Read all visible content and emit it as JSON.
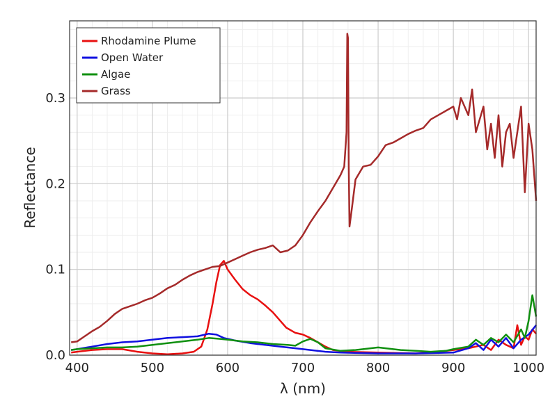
{
  "chart_data": {
    "type": "line",
    "title": "",
    "xlabel": "λ (nm)",
    "ylabel": "Reflectance",
    "xlim": [
      390,
      1010
    ],
    "ylim": [
      0.0,
      0.39
    ],
    "xticks": [
      400,
      500,
      600,
      700,
      800,
      900,
      1000
    ],
    "yticks": [
      0.0,
      0.1,
      0.2,
      0.3
    ],
    "ytick_labels": [
      "0.0",
      "0.1",
      "0.2",
      "0.3"
    ],
    "grid": true,
    "legend_position": "top-left",
    "series": [
      {
        "name": "Rhodamine Plume",
        "color": "#e81010",
        "points": [
          [
            392,
            0.003
          ],
          [
            400,
            0.004
          ],
          [
            420,
            0.006
          ],
          [
            440,
            0.007
          ],
          [
            460,
            0.007
          ],
          [
            480,
            0.004
          ],
          [
            500,
            0.002
          ],
          [
            520,
            0.001
          ],
          [
            540,
            0.002
          ],
          [
            555,
            0.004
          ],
          [
            565,
            0.01
          ],
          [
            573,
            0.03
          ],
          [
            580,
            0.06
          ],
          [
            585,
            0.085
          ],
          [
            590,
            0.105
          ],
          [
            595,
            0.11
          ],
          [
            600,
            0.1
          ],
          [
            610,
            0.088
          ],
          [
            620,
            0.077
          ],
          [
            630,
            0.07
          ],
          [
            640,
            0.065
          ],
          [
            650,
            0.058
          ],
          [
            660,
            0.05
          ],
          [
            670,
            0.04
          ],
          [
            678,
            0.032
          ],
          [
            690,
            0.026
          ],
          [
            700,
            0.024
          ],
          [
            710,
            0.02
          ],
          [
            720,
            0.015
          ],
          [
            730,
            0.01
          ],
          [
            740,
            0.006
          ],
          [
            760,
            0.004
          ],
          [
            800,
            0.003
          ],
          [
            850,
            0.002
          ],
          [
            880,
            0.004
          ],
          [
            900,
            0.006
          ],
          [
            920,
            0.008
          ],
          [
            940,
            0.012
          ],
          [
            950,
            0.006
          ],
          [
            960,
            0.018
          ],
          [
            970,
            0.012
          ],
          [
            980,
            0.008
          ],
          [
            985,
            0.035
          ],
          [
            990,
            0.012
          ],
          [
            995,
            0.022
          ],
          [
            1000,
            0.018
          ],
          [
            1005,
            0.03
          ],
          [
            1010,
            0.025
          ]
        ]
      },
      {
        "name": "Open Water",
        "color": "#1010e0",
        "points": [
          [
            392,
            0.006
          ],
          [
            400,
            0.007
          ],
          [
            420,
            0.01
          ],
          [
            440,
            0.013
          ],
          [
            460,
            0.015
          ],
          [
            480,
            0.016
          ],
          [
            500,
            0.018
          ],
          [
            520,
            0.02
          ],
          [
            540,
            0.021
          ],
          [
            560,
            0.022
          ],
          [
            575,
            0.025
          ],
          [
            585,
            0.024
          ],
          [
            595,
            0.02
          ],
          [
            610,
            0.017
          ],
          [
            630,
            0.014
          ],
          [
            650,
            0.012
          ],
          [
            670,
            0.01
          ],
          [
            690,
            0.008
          ],
          [
            710,
            0.006
          ],
          [
            730,
            0.004
          ],
          [
            750,
            0.003
          ],
          [
            800,
            0.002
          ],
          [
            850,
            0.002
          ],
          [
            900,
            0.003
          ],
          [
            920,
            0.008
          ],
          [
            930,
            0.014
          ],
          [
            940,
            0.006
          ],
          [
            950,
            0.018
          ],
          [
            960,
            0.01
          ],
          [
            970,
            0.02
          ],
          [
            980,
            0.008
          ],
          [
            990,
            0.018
          ],
          [
            1000,
            0.024
          ],
          [
            1010,
            0.035
          ]
        ]
      },
      {
        "name": "Algae",
        "color": "#109010",
        "points": [
          [
            392,
            0.006
          ],
          [
            400,
            0.007
          ],
          [
            420,
            0.008
          ],
          [
            440,
            0.009
          ],
          [
            460,
            0.009
          ],
          [
            480,
            0.01
          ],
          [
            500,
            0.012
          ],
          [
            520,
            0.014
          ],
          [
            540,
            0.016
          ],
          [
            560,
            0.018
          ],
          [
            575,
            0.02
          ],
          [
            590,
            0.019
          ],
          [
            600,
            0.018
          ],
          [
            620,
            0.016
          ],
          [
            640,
            0.015
          ],
          [
            660,
            0.013
          ],
          [
            680,
            0.012
          ],
          [
            690,
            0.011
          ],
          [
            700,
            0.016
          ],
          [
            710,
            0.019
          ],
          [
            720,
            0.015
          ],
          [
            730,
            0.008
          ],
          [
            750,
            0.005
          ],
          [
            770,
            0.006
          ],
          [
            790,
            0.008
          ],
          [
            800,
            0.009
          ],
          [
            810,
            0.008
          ],
          [
            830,
            0.006
          ],
          [
            850,
            0.005
          ],
          [
            870,
            0.004
          ],
          [
            890,
            0.005
          ],
          [
            900,
            0.007
          ],
          [
            920,
            0.01
          ],
          [
            930,
            0.018
          ],
          [
            940,
            0.012
          ],
          [
            950,
            0.02
          ],
          [
            960,
            0.015
          ],
          [
            970,
            0.024
          ],
          [
            980,
            0.015
          ],
          [
            990,
            0.03
          ],
          [
            995,
            0.02
          ],
          [
            1000,
            0.04
          ],
          [
            1005,
            0.07
          ],
          [
            1010,
            0.045
          ]
        ]
      },
      {
        "name": "Grass",
        "color": "#a52a2a",
        "points": [
          [
            392,
            0.015
          ],
          [
            400,
            0.016
          ],
          [
            410,
            0.022
          ],
          [
            420,
            0.028
          ],
          [
            430,
            0.033
          ],
          [
            440,
            0.04
          ],
          [
            450,
            0.048
          ],
          [
            460,
            0.054
          ],
          [
            470,
            0.057
          ],
          [
            480,
            0.06
          ],
          [
            490,
            0.064
          ],
          [
            500,
            0.067
          ],
          [
            510,
            0.072
          ],
          [
            520,
            0.078
          ],
          [
            530,
            0.082
          ],
          [
            540,
            0.088
          ],
          [
            550,
            0.093
          ],
          [
            560,
            0.097
          ],
          [
            570,
            0.1
          ],
          [
            580,
            0.103
          ],
          [
            590,
            0.104
          ],
          [
            600,
            0.108
          ],
          [
            610,
            0.112
          ],
          [
            620,
            0.116
          ],
          [
            630,
            0.12
          ],
          [
            640,
            0.123
          ],
          [
            650,
            0.125
          ],
          [
            660,
            0.128
          ],
          [
            670,
            0.12
          ],
          [
            680,
            0.122
          ],
          [
            690,
            0.128
          ],
          [
            700,
            0.14
          ],
          [
            710,
            0.155
          ],
          [
            720,
            0.168
          ],
          [
            730,
            0.18
          ],
          [
            740,
            0.195
          ],
          [
            750,
            0.21
          ],
          [
            755,
            0.22
          ],
          [
            758,
            0.26
          ],
          [
            759,
            0.375
          ],
          [
            760,
            0.37
          ],
          [
            761,
            0.22
          ],
          [
            762,
            0.15
          ],
          [
            765,
            0.17
          ],
          [
            770,
            0.205
          ],
          [
            780,
            0.22
          ],
          [
            790,
            0.222
          ],
          [
            800,
            0.232
          ],
          [
            810,
            0.245
          ],
          [
            820,
            0.248
          ],
          [
            830,
            0.253
          ],
          [
            840,
            0.258
          ],
          [
            850,
            0.262
          ],
          [
            860,
            0.265
          ],
          [
            870,
            0.275
          ],
          [
            880,
            0.28
          ],
          [
            890,
            0.285
          ],
          [
            900,
            0.29
          ],
          [
            905,
            0.275
          ],
          [
            910,
            0.3
          ],
          [
            920,
            0.28
          ],
          [
            925,
            0.31
          ],
          [
            930,
            0.26
          ],
          [
            940,
            0.29
          ],
          [
            945,
            0.24
          ],
          [
            950,
            0.27
          ],
          [
            955,
            0.23
          ],
          [
            960,
            0.28
          ],
          [
            965,
            0.22
          ],
          [
            970,
            0.26
          ],
          [
            975,
            0.27
          ],
          [
            980,
            0.23
          ],
          [
            985,
            0.26
          ],
          [
            990,
            0.29
          ],
          [
            995,
            0.19
          ],
          [
            1000,
            0.27
          ],
          [
            1005,
            0.24
          ],
          [
            1010,
            0.18
          ]
        ]
      }
    ]
  }
}
